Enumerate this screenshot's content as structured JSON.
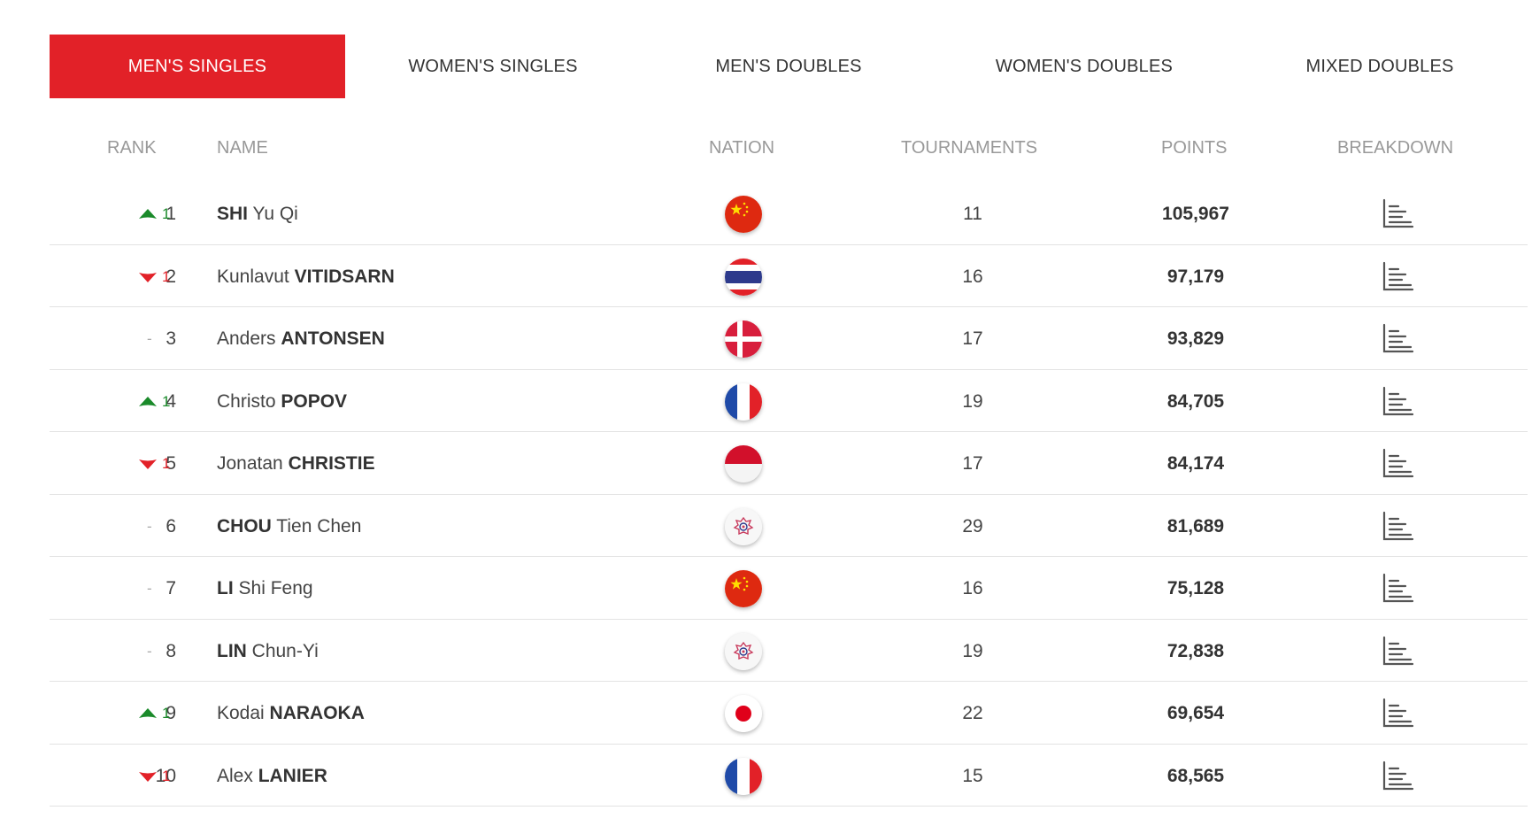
{
  "tabs": [
    {
      "label": "MEN'S SINGLES",
      "active": true
    },
    {
      "label": "WOMEN'S SINGLES",
      "active": false
    },
    {
      "label": "MEN'S DOUBLES",
      "active": false
    },
    {
      "label": "WOMEN'S DOUBLES",
      "active": false
    },
    {
      "label": "MIXED DOUBLES",
      "active": false
    }
  ],
  "columns": {
    "rank": "RANK",
    "name": "NAME",
    "nation": "NATION",
    "tournaments": "TOURNAMENTS",
    "points": "POINTS",
    "breakdown": "BREAKDOWN"
  },
  "colors": {
    "accent": "#e22128",
    "up": "#1a8a2a",
    "down": "#e22128"
  },
  "rows": [
    {
      "rank": "1",
      "change_dir": "up",
      "change": "1",
      "name_pre": "",
      "name_bold": "SHI",
      "name_post": " Yu Qi",
      "flag": "china",
      "tournaments": "11",
      "points": "105,967"
    },
    {
      "rank": "2",
      "change_dir": "down",
      "change": "1",
      "name_pre": "Kunlavut ",
      "name_bold": "VITIDSARN",
      "name_post": "",
      "flag": "thailand",
      "tournaments": "16",
      "points": "97,179"
    },
    {
      "rank": "3",
      "change_dir": "none",
      "change": "-",
      "name_pre": "Anders ",
      "name_bold": "ANTONSEN",
      "name_post": "",
      "flag": "denmark",
      "tournaments": "17",
      "points": "93,829"
    },
    {
      "rank": "4",
      "change_dir": "up",
      "change": "1",
      "name_pre": "Christo ",
      "name_bold": "POPOV",
      "name_post": "",
      "flag": "france",
      "tournaments": "19",
      "points": "84,705"
    },
    {
      "rank": "5",
      "change_dir": "down",
      "change": "1",
      "name_pre": "Jonatan ",
      "name_bold": "CHRISTIE",
      "name_post": "",
      "flag": "indonesia",
      "tournaments": "17",
      "points": "84,174"
    },
    {
      "rank": "6",
      "change_dir": "none",
      "change": "-",
      "name_pre": "",
      "name_bold": "CHOU",
      "name_post": " Tien Chen",
      "flag": "chinese-taipei",
      "tournaments": "29",
      "points": "81,689"
    },
    {
      "rank": "7",
      "change_dir": "none",
      "change": "-",
      "name_pre": "",
      "name_bold": "LI",
      "name_post": " Shi Feng",
      "flag": "china",
      "tournaments": "16",
      "points": "75,128"
    },
    {
      "rank": "8",
      "change_dir": "none",
      "change": "-",
      "name_pre": "",
      "name_bold": "LIN",
      "name_post": " Chun-Yi",
      "flag": "chinese-taipei",
      "tournaments": "19",
      "points": "72,838"
    },
    {
      "rank": "9",
      "change_dir": "up",
      "change": "1",
      "name_pre": "Kodai ",
      "name_bold": "NARAOKA",
      "name_post": "",
      "flag": "japan",
      "tournaments": "22",
      "points": "69,654"
    },
    {
      "rank": "10",
      "change_dir": "down",
      "change": "1",
      "name_pre": "Alex ",
      "name_bold": "LANIER",
      "name_post": "",
      "flag": "france",
      "tournaments": "15",
      "points": "68,565"
    }
  ]
}
